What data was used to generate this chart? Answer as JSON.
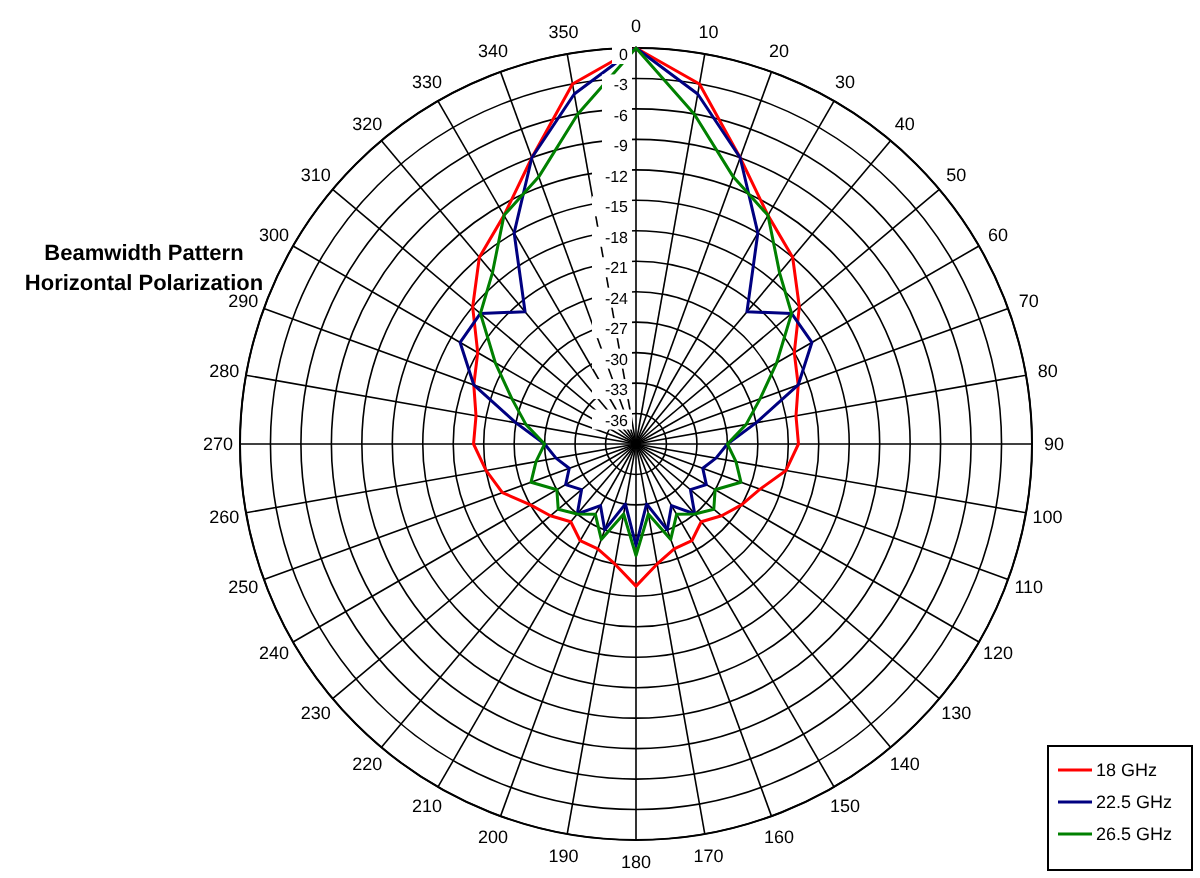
{
  "chart_data": {
    "type": "radar",
    "title": "Beamwidth Pattern",
    "subtitle": "Horizontal Polarization",
    "categories": [
      "0",
      "10",
      "20",
      "30",
      "40",
      "50",
      "60",
      "70",
      "80",
      "90",
      "100",
      "110",
      "120",
      "130",
      "140",
      "150",
      "160",
      "170",
      "180",
      "190",
      "200",
      "210",
      "220",
      "230",
      "240",
      "250",
      "260",
      "270",
      "280",
      "290",
      "300",
      "310",
      "320",
      "330",
      "340",
      "350"
    ],
    "ylim": [
      -39,
      0
    ],
    "yticks": [
      0,
      -3,
      -6,
      -9,
      -12,
      -15,
      -18,
      -21,
      -24,
      -27,
      -30,
      -33,
      -36
    ],
    "grid": true,
    "legend": "bottom right",
    "series": [
      {
        "name": "18 GHz",
        "color": "#ff0000",
        "values": [
          0,
          -3,
          -9,
          -13,
          -15,
          -18,
          -21,
          -22,
          -23,
          -23,
          -24,
          -26,
          -27,
          -28,
          -29,
          -28,
          -28,
          -27,
          -25,
          -27,
          -28,
          -28,
          -29,
          -28,
          -27,
          -25,
          -24,
          -23,
          -23,
          -22,
          -21,
          -18,
          -15,
          -13,
          -9,
          -3
        ]
      },
      {
        "name": "22.5 GHz",
        "color": "#000080",
        "values": [
          0,
          -4,
          -9,
          -15,
          -22,
          -19,
          -19,
          -22,
          -27,
          -30,
          -31,
          -32,
          -31,
          -32,
          -30,
          -32,
          -30,
          -33,
          -29,
          -33,
          -30,
          -32,
          -30,
          -32,
          -31,
          -32,
          -31,
          -30,
          -27,
          -22,
          -19,
          -19,
          -22,
          -15,
          -9,
          -4
        ]
      },
      {
        "name": "26.5 GHz",
        "color": "#008000",
        "values": [
          0,
          -6,
          -11,
          -13,
          -17,
          -19,
          -23,
          -26,
          -28,
          -30,
          -29,
          -28,
          -30,
          -29,
          -30,
          -31,
          -29,
          -32,
          -28,
          -32,
          -29,
          -31,
          -30,
          -29,
          -30,
          -28,
          -29,
          -30,
          -28,
          -26,
          -23,
          -19,
          -17,
          -13,
          -11,
          -6
        ]
      }
    ]
  }
}
